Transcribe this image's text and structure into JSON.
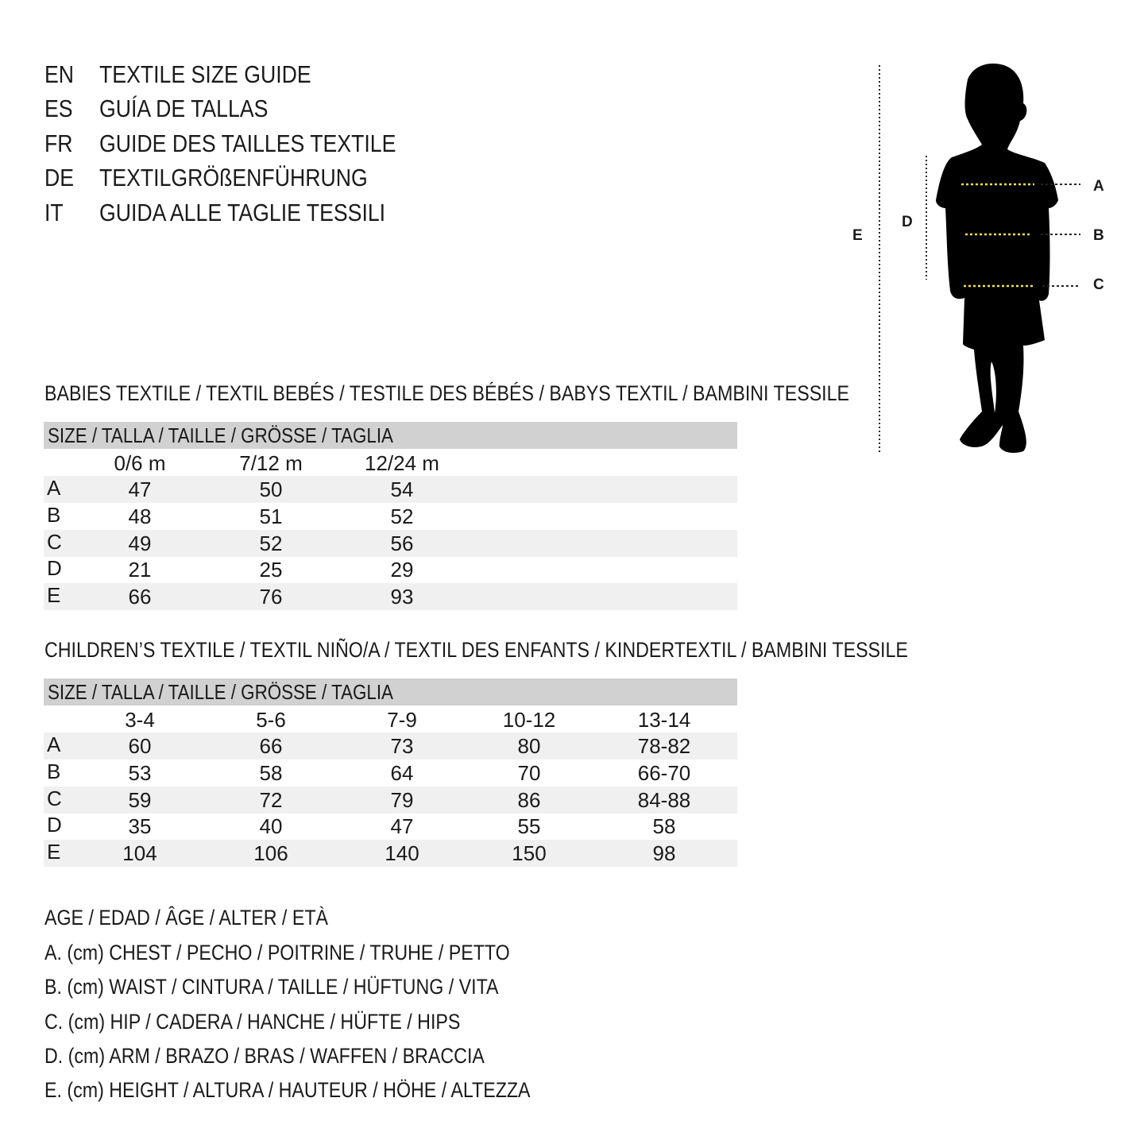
{
  "titles": [
    {
      "code": "EN",
      "text": "TEXTILE SIZE GUIDE"
    },
    {
      "code": "ES",
      "text": "GUÍA DE TALLAS"
    },
    {
      "code": "FR",
      "text": "GUIDE DES TAILLES TEXTILE"
    },
    {
      "code": "DE",
      "text": "TEXTILGRÖßENFÜHRUNG"
    },
    {
      "code": "IT",
      "text": "GUIDA ALLE TAGLIE TESSILI"
    }
  ],
  "figure": {
    "labels": {
      "a": "A",
      "b": "B",
      "c": "C",
      "d": "D",
      "e": "E"
    },
    "guide_color": "#f2e14a"
  },
  "babies": {
    "heading": "BABIES TEXTILE / TEXTIL BEBÉS / TESTILE DES BÉBÉS / BABYS TEXTIL / BAMBINI TESSILE",
    "size_header": "SIZE / TALLA / TAILLE / GRÖSSE / TAGLIA",
    "columns": [
      "0/6 m",
      "7/12 m",
      "12/24 m"
    ],
    "rows": [
      {
        "label": "A",
        "values": [
          "47",
          "50",
          "54"
        ]
      },
      {
        "label": "B",
        "values": [
          "48",
          "51",
          "52"
        ]
      },
      {
        "label": "C",
        "values": [
          "49",
          "52",
          "56"
        ]
      },
      {
        "label": "D",
        "values": [
          "21",
          "25",
          "29"
        ]
      },
      {
        "label": "E",
        "values": [
          "66",
          "76",
          "93"
        ]
      }
    ]
  },
  "children": {
    "heading": "CHILDREN’S TEXTILE / TEXTIL NIÑO/A / TEXTIL DES ENFANTS / KINDERTEXTIL / BAMBINI TESSILE",
    "size_header": "SIZE / TALLA / TAILLE / GRÖSSE / TAGLIA",
    "columns": [
      "3-4",
      "5-6",
      "7-9",
      "10-12",
      "13-14"
    ],
    "rows": [
      {
        "label": "A",
        "values": [
          "60",
          "66",
          "73",
          "80",
          "78-82"
        ]
      },
      {
        "label": "B",
        "values": [
          "53",
          "58",
          "64",
          "70",
          "66-70"
        ]
      },
      {
        "label": "C",
        "values": [
          "59",
          "72",
          "79",
          "86",
          "84-88"
        ]
      },
      {
        "label": "D",
        "values": [
          "35",
          "40",
          "47",
          "55",
          "58"
        ]
      },
      {
        "label": "E",
        "values": [
          "104",
          "106",
          "140",
          "150",
          "98"
        ]
      }
    ]
  },
  "legend": [
    "AGE / EDAD / ÂGE / ALTER / ETÀ",
    "A. (cm) CHEST / PECHO / POITRINE / TRUHE / PETTO",
    "B. (cm) WAIST / CINTURA / TAILLE / HÜFTUNG / VITA",
    "C. (cm) HIP / CADERA / HANCHE / HÜFTE / HIPS",
    "D. (cm) ARM / BRAZO / BRAS / WAFFEN / BRACCIA",
    "E. (cm) HEIGHT / ALTURA / HAUTEUR / HÖHE / ALTEZZA"
  ]
}
